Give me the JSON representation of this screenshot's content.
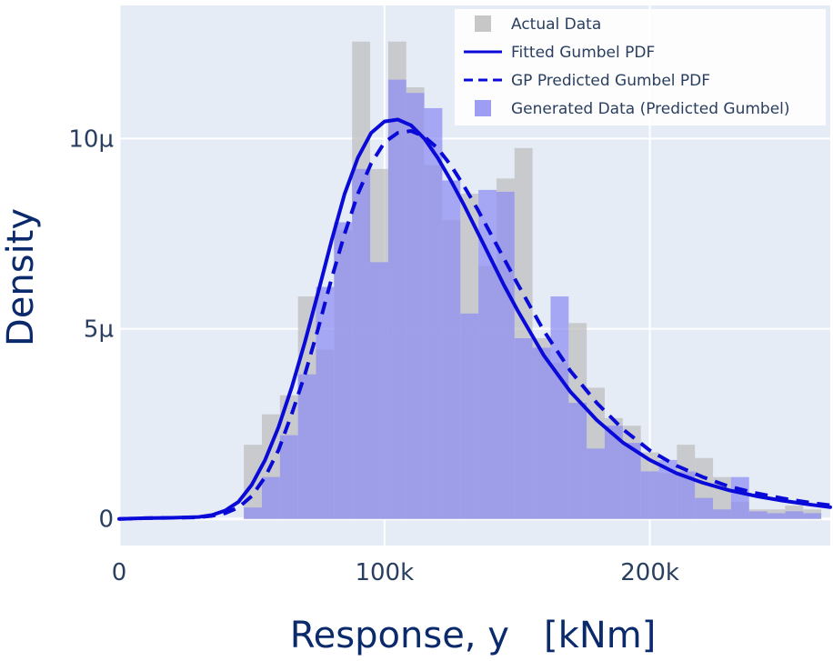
{
  "chart_data": {
    "type": "histogram",
    "xlabel": "Response, y   [kNm]",
    "ylabel": "Density",
    "xlim": [
      0,
      268000
    ],
    "ylim": [
      -7e-07,
      1.35e-05
    ],
    "x_ticks": [
      0,
      100000,
      200000
    ],
    "x_tick_labels": [
      "0",
      "100k",
      "200k"
    ],
    "y_ticks": [
      0,
      5e-06,
      1e-05
    ],
    "y_tick_labels": [
      "0",
      "5µ",
      "10µ"
    ],
    "grid": true,
    "legend_position": "top-right",
    "colors": {
      "plot_background": "#e5ecf6",
      "actual_data": "#bdbdbd",
      "generated_data": "#8c8cf2",
      "line": "#0a0ad8"
    },
    "series": [
      {
        "name": "Actual Data",
        "kind": "histogram",
        "bin_width": 6800,
        "bin_starts": [
          47000,
          53800,
          60600,
          67400,
          74200,
          81000,
          87800,
          94600,
          101400,
          108200,
          115000,
          121800,
          128600,
          135400,
          142200,
          149000,
          155800,
          162600,
          169400,
          176200,
          183000,
          189800,
          196600,
          203400,
          210200,
          217000,
          223800,
          230600,
          237400,
          244200,
          251000,
          257800
        ],
        "values": [
          1.95,
          2.75,
          3.25,
          5.85,
          4.45,
          7.6,
          12.55,
          9.2,
          12.55,
          11.35,
          9.3,
          7.85,
          8.55,
          6.65,
          8.95,
          9.75,
          4.75,
          4.1,
          5.15,
          3.45,
          2.65,
          2.45,
          1.75,
          1.2,
          1.95,
          1.6,
          1.1,
          0.45,
          0.25,
          0.25,
          0.35,
          0.25
        ]
      },
      {
        "name": "Generated Data (Predicted Gumbel)",
        "kind": "histogram",
        "bin_width": 6800,
        "bin_starts": [
          47000,
          53800,
          60600,
          67400,
          74200,
          81000,
          87800,
          94600,
          101400,
          108200,
          115000,
          121800,
          128600,
          135400,
          142200,
          149000,
          155800,
          162600,
          169400,
          176200,
          183000,
          189800,
          196600,
          203400,
          210200,
          217000,
          223800,
          230600,
          237400,
          244200,
          251000,
          257800
        ],
        "values": [
          0.3,
          1.1,
          2.2,
          3.8,
          6.1,
          7.8,
          9.2,
          6.75,
          11.55,
          11.2,
          10.8,
          8.9,
          5.4,
          8.65,
          8.6,
          4.75,
          4.5,
          5.85,
          3.05,
          1.85,
          2.45,
          2.0,
          1.25,
          1.55,
          1.25,
          0.55,
          0.25,
          1.1,
          0.2,
          0.15,
          0.2,
          0.15
        ]
      },
      {
        "name": "Fitted Gumbel PDF",
        "kind": "line",
        "style": "solid",
        "x": [
          0,
          10000,
          20000,
          30000,
          35000,
          40000,
          45000,
          50000,
          55000,
          60000,
          65000,
          70000,
          75000,
          80000,
          85000,
          90000,
          95000,
          100000,
          105000,
          110000,
          115000,
          120000,
          125000,
          130000,
          135000,
          140000,
          145000,
          150000,
          160000,
          170000,
          180000,
          190000,
          200000,
          210000,
          220000,
          230000,
          240000,
          250000,
          260000,
          268000
        ],
        "values": [
          0.0,
          0.02,
          0.03,
          0.05,
          0.1,
          0.22,
          0.45,
          0.9,
          1.55,
          2.4,
          3.45,
          4.65,
          5.95,
          7.3,
          8.55,
          9.5,
          10.15,
          10.45,
          10.5,
          10.35,
          10.0,
          9.5,
          8.9,
          8.25,
          7.55,
          6.85,
          6.15,
          5.5,
          4.3,
          3.35,
          2.6,
          2.0,
          1.55,
          1.2,
          0.95,
          0.75,
          0.6,
          0.48,
          0.38,
          0.31
        ]
      },
      {
        "name": "GP Predicted Gumbel PDF",
        "kind": "line",
        "style": "dashed",
        "x": [
          0,
          10000,
          20000,
          30000,
          35000,
          40000,
          45000,
          50000,
          55000,
          60000,
          65000,
          70000,
          75000,
          80000,
          85000,
          90000,
          95000,
          100000,
          105000,
          110000,
          115000,
          120000,
          125000,
          130000,
          135000,
          140000,
          145000,
          150000,
          160000,
          170000,
          180000,
          190000,
          200000,
          210000,
          220000,
          230000,
          240000,
          250000,
          260000,
          268000
        ],
        "values": [
          0.0,
          0.02,
          0.03,
          0.04,
          0.08,
          0.15,
          0.3,
          0.6,
          1.1,
          1.8,
          2.75,
          3.8,
          5.0,
          6.3,
          7.5,
          8.55,
          9.35,
          9.9,
          10.15,
          10.2,
          10.05,
          9.75,
          9.3,
          8.75,
          8.15,
          7.5,
          6.85,
          6.2,
          4.95,
          3.9,
          3.05,
          2.35,
          1.8,
          1.4,
          1.1,
          0.85,
          0.68,
          0.54,
          0.43,
          0.36
        ]
      }
    ]
  }
}
